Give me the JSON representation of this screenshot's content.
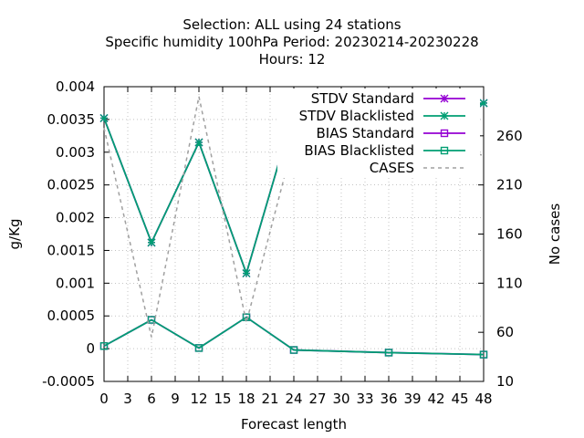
{
  "chart_data": {
    "type": "line",
    "title_lines": [
      "Selection: ALL using    24 stations",
      "Specific humidity 100hPa    Period: 20230214-20230228",
      "Hours:  12"
    ],
    "xlabel": "Forecast length",
    "ylabel": "g/Kg",
    "y2label": "No cases",
    "xlim": [
      0,
      48
    ],
    "ylim": [
      -0.0005,
      0.004
    ],
    "y2lim": [
      10,
      310
    ],
    "x_ticks": [
      "0",
      "3",
      "6",
      "9",
      "12",
      "15",
      "18",
      "21",
      "24",
      "27",
      "30",
      "33",
      "36",
      "39",
      "42",
      "45",
      "48"
    ],
    "y_ticks": [
      "0.004",
      "0.0035",
      "0.003",
      "0.0025",
      "0.002",
      "0.0015",
      "0.001",
      "0.0005",
      "0",
      "-0.0005"
    ],
    "y2_ticks": [
      "260",
      "210",
      "160",
      "110",
      "60",
      "10"
    ],
    "legend_position": "top-right",
    "series": [
      {
        "name": "STDV Standard",
        "color": "#9400d3",
        "marker": "star",
        "axis": "y",
        "dashed": false,
        "x": [
          0,
          6,
          12,
          18,
          24,
          36,
          48
        ],
        "y": [
          0.00352,
          0.00162,
          0.00315,
          0.00115,
          0.00362,
          0.00325,
          0.00375
        ]
      },
      {
        "name": "STDV Blacklisted",
        "color": "#009e73",
        "marker": "star",
        "axis": "y",
        "dashed": false,
        "x": [
          0,
          6,
          12,
          18,
          24,
          36,
          48
        ],
        "y": [
          0.00352,
          0.00162,
          0.00315,
          0.00115,
          0.00362,
          0.00325,
          0.00375
        ]
      },
      {
        "name": "BIAS Standard",
        "color": "#9400d3",
        "marker": "square",
        "axis": "y",
        "dashed": false,
        "x": [
          0,
          6,
          12,
          18,
          24,
          36,
          48
        ],
        "y": [
          4e-05,
          0.00044,
          1e-05,
          0.00048,
          -2e-05,
          -6e-05,
          -9e-05
        ]
      },
      {
        "name": "BIAS Blacklisted",
        "color": "#009e73",
        "marker": "square",
        "axis": "y",
        "dashed": false,
        "x": [
          0,
          6,
          12,
          18,
          24,
          36,
          48
        ],
        "y": [
          4e-05,
          0.00044,
          1e-05,
          0.00048,
          -2e-05,
          -6e-05,
          -9e-05
        ]
      },
      {
        "name": "CASES",
        "color": "#a0a0a0",
        "marker": "none",
        "axis": "y2",
        "dashed": true,
        "x": [
          0,
          6,
          12,
          18,
          24,
          36,
          48
        ],
        "y": [
          268,
          55,
          300,
          70,
          255,
          263,
          240
        ]
      }
    ]
  }
}
